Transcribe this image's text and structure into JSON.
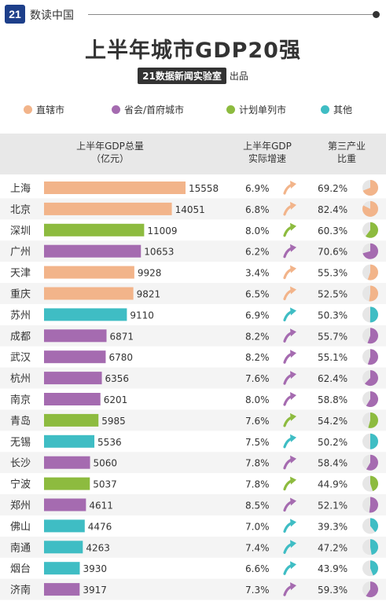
{
  "header": {
    "logo_text": "21",
    "brand": "数读中国",
    "title": "上半年城市GDP20强",
    "subtitle_badge": "21数据新闻实验室",
    "subtitle_text": "出品"
  },
  "legend": [
    {
      "label": "直辖市",
      "color": "#f2b48a"
    },
    {
      "label": "省会/首府城市",
      "color": "#a56bb0"
    },
    {
      "label": "计划单列市",
      "color": "#8dbb3f"
    },
    {
      "label": "其他",
      "color": "#3fbdc4"
    }
  ],
  "columns": {
    "gdp_line1": "上半年GDP总量",
    "gdp_line2": "（亿元）",
    "growth_line1": "上半年GDP",
    "growth_line2": "实际增速",
    "tertiary_line1": "第三产业",
    "tertiary_line2": "比重"
  },
  "chart_data": {
    "type": "bar",
    "categories": [
      "上海",
      "北京",
      "深圳",
      "广州",
      "天津",
      "重庆",
      "苏州",
      "成都",
      "武汉",
      "杭州",
      "南京",
      "青岛",
      "无锡",
      "长沙",
      "宁波",
      "郑州",
      "佛山",
      "南通",
      "烟台",
      "济南"
    ],
    "series": [
      {
        "values": [
          15558,
          14051,
          11009,
          10653,
          9928,
          9821,
          9110,
          6871,
          6780,
          6356,
          6201,
          5985,
          5536,
          5060,
          5037,
          4611,
          4476,
          4263,
          3930,
          3917
        ]
      }
    ],
    "growth": [
      "6.9%",
      "6.8%",
      "8.0%",
      "6.2%",
      "3.4%",
      "6.5%",
      "6.9%",
      "8.2%",
      "8.2%",
      "7.6%",
      "8.0%",
      "7.6%",
      "7.5%",
      "7.8%",
      "7.8%",
      "8.5%",
      "7.0%",
      "7.4%",
      "6.6%",
      "7.3%"
    ],
    "tertiary": [
      "69.2%",
      "82.4%",
      "60.3%",
      "70.6%",
      "55.3%",
      "52.5%",
      "50.3%",
      "55.7%",
      "55.1%",
      "62.4%",
      "58.8%",
      "54.2%",
      "50.2%",
      "58.4%",
      "44.9%",
      "52.1%",
      "39.3%",
      "47.2%",
      "43.9%",
      "59.3%"
    ],
    "tertiary_values": [
      69.2,
      82.4,
      60.3,
      70.6,
      55.3,
      52.5,
      50.3,
      55.7,
      55.1,
      62.4,
      58.8,
      54.2,
      50.2,
      58.4,
      44.9,
      52.1,
      39.3,
      47.2,
      43.9,
      59.3
    ],
    "city_type": [
      "municipality",
      "municipality",
      "plan",
      "capital",
      "municipality",
      "municipality",
      "other",
      "capital",
      "capital",
      "capital",
      "capital",
      "plan",
      "other",
      "capital",
      "plan",
      "capital",
      "other",
      "other",
      "other",
      "capital"
    ],
    "type_colors": {
      "municipality": "#f2b48a",
      "capital": "#a56bb0",
      "plan": "#8dbb3f",
      "other": "#3fbdc4"
    },
    "xlim": [
      0,
      15558
    ],
    "legend_position": "top"
  }
}
